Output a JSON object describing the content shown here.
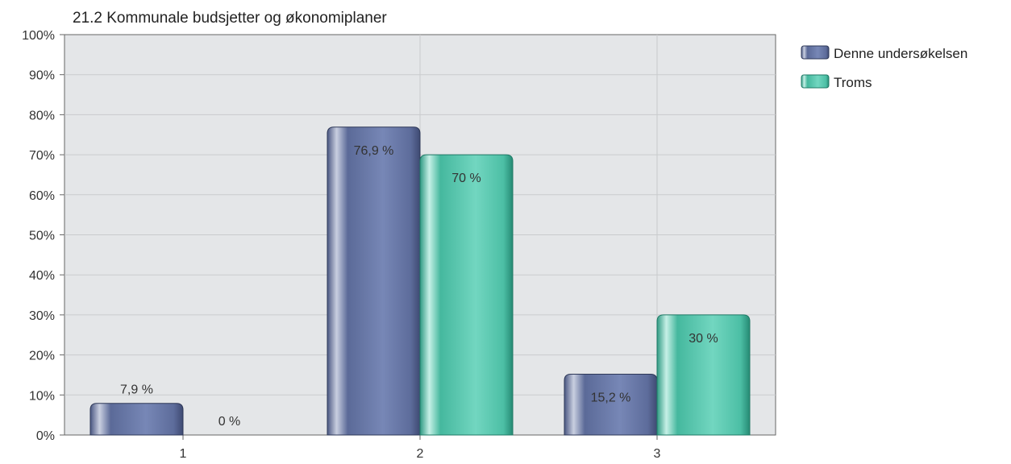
{
  "chart_data": {
    "type": "bar",
    "title": "21.2 Kommunale budsjetter og økonomiplaner",
    "categories": [
      "1",
      "2",
      "3"
    ],
    "series": [
      {
        "name": "Denne undersøkelsen",
        "values": [
          7.9,
          76.9,
          15.2
        ],
        "labels": [
          "7,9 %",
          "76,9 %",
          "15,2 %"
        ],
        "color": "#6677a6"
      },
      {
        "name": "Troms",
        "values": [
          0,
          70,
          30
        ],
        "labels": [
          "0 %",
          "70 %",
          "30 %"
        ],
        "color": "#4fbfa7"
      }
    ],
    "y_ticks": [
      "0%",
      "10%",
      "20%",
      "30%",
      "40%",
      "50%",
      "60%",
      "70%",
      "80%",
      "90%",
      "100%"
    ],
    "ylim": [
      0,
      100
    ],
    "grid": true,
    "legend_position": "top-right",
    "plot_background": "#e4e6e8"
  }
}
